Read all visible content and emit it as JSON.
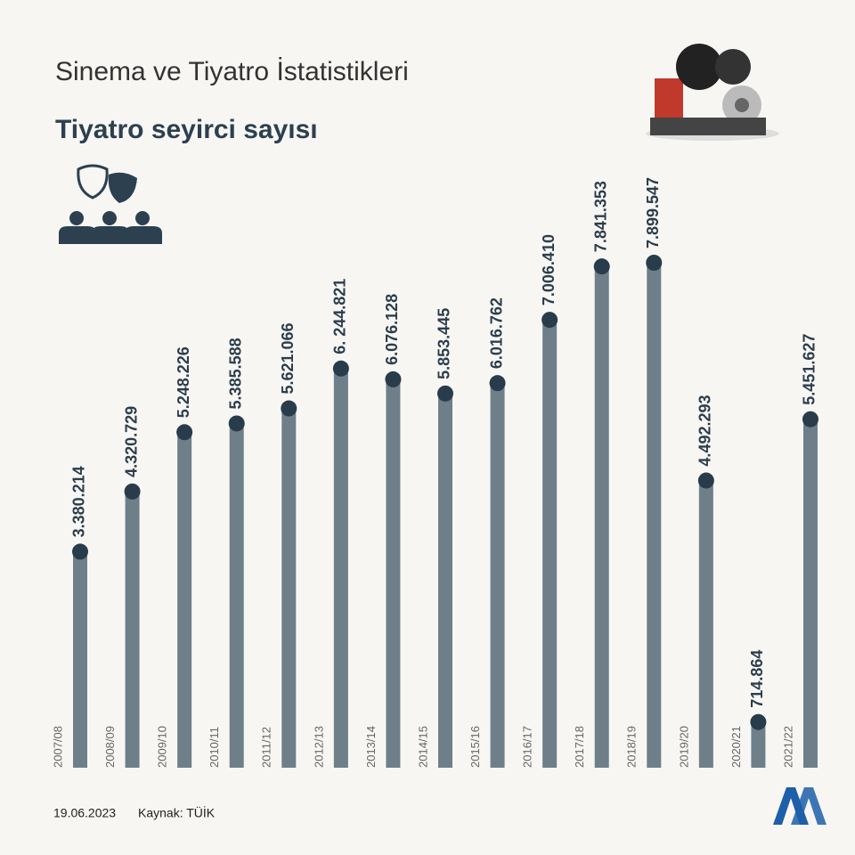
{
  "header": "Sinema ve Tiyatro İstatistikleri",
  "footer": {
    "date": "19.06.2023",
    "source": "Kaynak: TÜİK"
  },
  "chart_data": {
    "type": "lollipop",
    "title": "Tiyatro seyirci sayısı",
    "categories": [
      "2007/08",
      "2008/09",
      "2009/10",
      "2010/11",
      "2011/12",
      "2012/13",
      "2013/14",
      "2014/15",
      "2015/16",
      "2016/17",
      "2017/18",
      "2018/19",
      "2019/20",
      "2020/21",
      "2021/22"
    ],
    "values": [
      3380214,
      4320729,
      5248226,
      5385588,
      5621066,
      6244821,
      6076128,
      5853445,
      6016762,
      7006410,
      7841353,
      7899547,
      4492293,
      714864,
      5451627
    ],
    "value_labels": [
      "3.380.214",
      "4.320.729",
      "5.248.226",
      "5.385.588",
      "5.621.066",
      "6. 244.821",
      "6.076.128",
      "5.853.445",
      "6.016.762",
      "7.006.410",
      "7.841.353",
      "7.899.547",
      "4.492.293",
      "714.864",
      "5.451.627"
    ],
    "color": "#6e7f8a",
    "dot_color": "#283c4b"
  }
}
